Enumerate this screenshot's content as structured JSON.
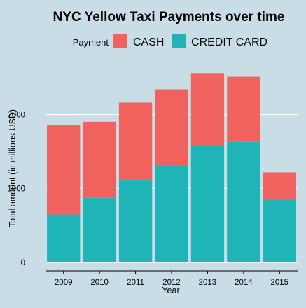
{
  "chart_data": {
    "type": "bar",
    "stacked": true,
    "title": "NYC Yellow Taxi Payments over time",
    "legend_title": "Payment",
    "legend_position": "top",
    "xlabel": "Year",
    "ylabel": "Total amount (in millions USD)",
    "categories": [
      "2009",
      "2010",
      "2011",
      "2012",
      "2013",
      "2014",
      "2015"
    ],
    "ylim": [
      0,
      2620
    ],
    "yticks": [
      0,
      1000,
      2000
    ],
    "grid": true,
    "series": [
      {
        "name": "CREDIT CARD",
        "color": "#1fb5b7",
        "values": [
          650,
          880,
          1110,
          1310,
          1580,
          1640,
          850
        ]
      },
      {
        "name": "CASH",
        "color": "#f0625e",
        "values": [
          1210,
          1020,
          1050,
          1030,
          980,
          870,
          370
        ]
      }
    ],
    "legend_order": [
      "CASH",
      "CREDIT CARD"
    ]
  }
}
